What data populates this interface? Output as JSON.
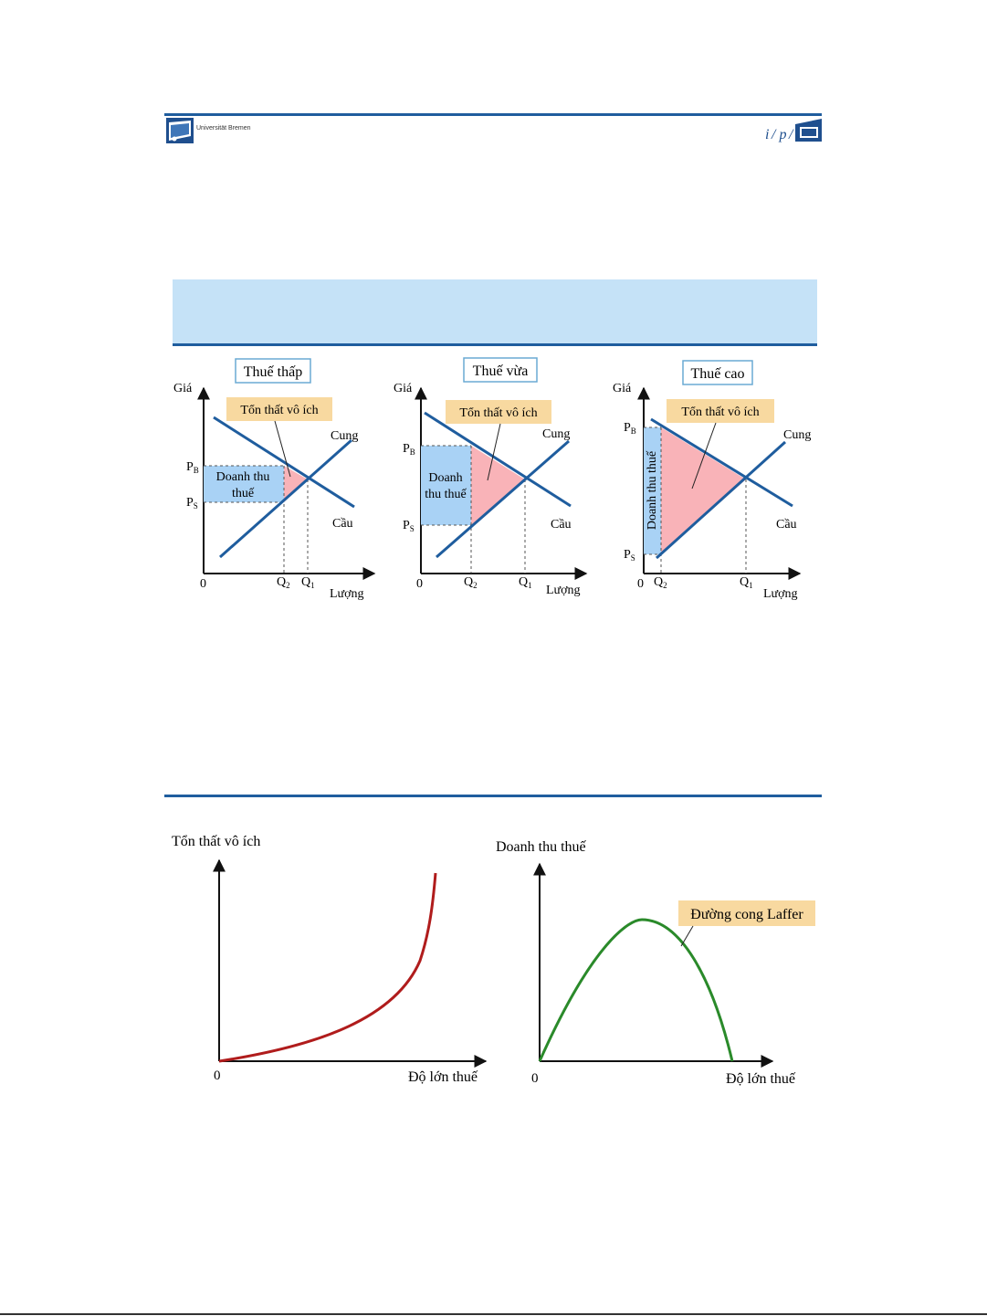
{
  "header": {
    "university": "Universität Bremen"
  },
  "panels": [
    {
      "title": "Thuế thấp",
      "price_axis": "Giá",
      "quantity_axis": "Lượng",
      "origin": "0",
      "deadweight_label": "Tổn thất vô ích",
      "revenue_label_line1": "Doanh thu",
      "revenue_label_line2": "thuế",
      "supply": "Cung",
      "demand": "Cầu",
      "pb": "P",
      "pb_sub": "B",
      "ps": "P",
      "ps_sub": "S",
      "q1": "Q",
      "q1_sub": "1",
      "q2": "Q",
      "q2_sub": "2"
    },
    {
      "title": "Thuế vừa",
      "price_axis": "Giá",
      "quantity_axis": "Lượng",
      "origin": "0",
      "deadweight_label": "Tổn thất vô ích",
      "revenue_label_line1": "Doanh",
      "revenue_label_line2": "thu thuế",
      "supply": "Cung",
      "demand": "Cầu",
      "pb": "P",
      "pb_sub": "B",
      "ps": "P",
      "ps_sub": "S",
      "q1": "Q",
      "q1_sub": "1",
      "q2": "Q",
      "q2_sub": "2"
    },
    {
      "title": "Thuế cao",
      "price_axis": "Giá",
      "quantity_axis": "Lượng",
      "origin": "0",
      "deadweight_label": "Tổn thất vô ích",
      "revenue_label": "Doanh thu thuế",
      "supply": "Cung",
      "demand": "Cầu",
      "pb": "P",
      "pb_sub": "B",
      "ps": "P",
      "ps_sub": "S",
      "q1": "Q",
      "q1_sub": "1",
      "q2": "Q",
      "q2_sub": "2"
    }
  ],
  "bottom_left": {
    "y_label": "Tổn thất vô ích",
    "x_label": "Độ lớn thuế",
    "origin": "0",
    "curve_color": "#b01c1c"
  },
  "bottom_right": {
    "y_label": "Doanh thu thuế",
    "x_label": "Độ lớn thuế",
    "origin": "0",
    "curve_label": "Đường cong Laffer",
    "curve_color": "#2a8a2a"
  },
  "colors": {
    "curve_blue": "#1f5d9e",
    "revenue_fill": "#a9d2f5",
    "deadweight_fill": "#f9b3b8",
    "callout_fill": "#f8d9a0",
    "band_fill": "#c5e2f7"
  }
}
